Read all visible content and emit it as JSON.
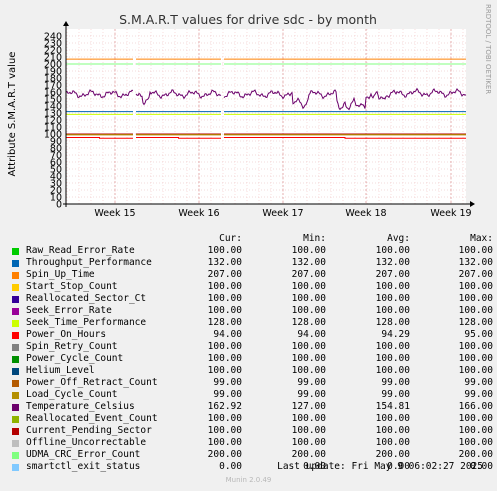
{
  "chart_data": {
    "type": "line",
    "title": "S.M.A.R.T values for drive sdc - by month",
    "ylabel": "Attribute S.M.A.R.T value",
    "side_label": "RRDTOOL / TOBI OETIKER",
    "ylim": [
      0,
      250
    ],
    "yticks": [
      0,
      10,
      20,
      30,
      40,
      50,
      60,
      70,
      80,
      90,
      100,
      110,
      120,
      130,
      140,
      150,
      160,
      170,
      180,
      190,
      200,
      210,
      220,
      230,
      240
    ],
    "xticks": [
      "Week 15",
      "Week 16",
      "Week 17",
      "Week 18",
      "Week 19"
    ],
    "columns": [
      "Cur:",
      "Min:",
      "Avg:",
      "Max:"
    ],
    "series": [
      {
        "name": "Raw_Read_Error_Rate",
        "color": "#00cc00",
        "cur": "100.00",
        "min": "100.00",
        "avg": "100.00",
        "max": "100.00"
      },
      {
        "name": "Throughput_Performance",
        "color": "#0066b3",
        "cur": "132.00",
        "min": "132.00",
        "avg": "132.00",
        "max": "132.00"
      },
      {
        "name": "Spin_Up_Time",
        "color": "#ff8000",
        "cur": "207.00",
        "min": "207.00",
        "avg": "207.00",
        "max": "207.00"
      },
      {
        "name": "Start_Stop_Count",
        "color": "#ffcc00",
        "cur": "100.00",
        "min": "100.00",
        "avg": "100.00",
        "max": "100.00"
      },
      {
        "name": "Reallocated_Sector_Ct",
        "color": "#330099",
        "cur": "100.00",
        "min": "100.00",
        "avg": "100.00",
        "max": "100.00"
      },
      {
        "name": "Seek_Error_Rate",
        "color": "#990099",
        "cur": "100.00",
        "min": "100.00",
        "avg": "100.00",
        "max": "100.00"
      },
      {
        "name": "Seek_Time_Performance",
        "color": "#ccff00",
        "cur": "128.00",
        "min": "128.00",
        "avg": "128.00",
        "max": "128.00"
      },
      {
        "name": "Power_On_Hours",
        "color": "#ff0000",
        "cur": "94.00",
        "min": "94.00",
        "avg": "94.29",
        "max": "95.00"
      },
      {
        "name": "Spin_Retry_Count",
        "color": "#808080",
        "cur": "100.00",
        "min": "100.00",
        "avg": "100.00",
        "max": "100.00"
      },
      {
        "name": "Power_Cycle_Count",
        "color": "#008f00",
        "cur": "100.00",
        "min": "100.00",
        "avg": "100.00",
        "max": "100.00"
      },
      {
        "name": "Helium_Level",
        "color": "#00487d",
        "cur": "100.00",
        "min": "100.00",
        "avg": "100.00",
        "max": "100.00"
      },
      {
        "name": "Power_Off_Retract_Count",
        "color": "#b35a00",
        "cur": "99.00",
        "min": "99.00",
        "avg": "99.00",
        "max": "99.00"
      },
      {
        "name": "Load_Cycle_Count",
        "color": "#b38f00",
        "cur": "99.00",
        "min": "99.00",
        "avg": "99.00",
        "max": "99.00"
      },
      {
        "name": "Temperature_Celsius",
        "color": "#6b006b",
        "cur": "162.92",
        "min": "127.00",
        "avg": "154.81",
        "max": "166.00"
      },
      {
        "name": "Reallocated_Event_Count",
        "color": "#8fb300",
        "cur": "100.00",
        "min": "100.00",
        "avg": "100.00",
        "max": "100.00"
      },
      {
        "name": "Current_Pending_Sector",
        "color": "#b30000",
        "cur": "100.00",
        "min": "100.00",
        "avg": "100.00",
        "max": "100.00"
      },
      {
        "name": "Offline_Uncorrectable",
        "color": "#bebebe",
        "cur": "100.00",
        "min": "100.00",
        "avg": "100.00",
        "max": "100.00"
      },
      {
        "name": "UDMA_CRC_Error_Count",
        "color": "#80ff80",
        "cur": "200.00",
        "min": "200.00",
        "avg": "200.00",
        "max": "200.00"
      },
      {
        "name": "smartctl_exit_status",
        "color": "#80c9ff",
        "cur": "0.00",
        "min": "0.00",
        "avg": "0.00",
        "max": "0.00"
      }
    ],
    "last_update": "Last update:  Fri May  9 06:02:27 2025",
    "version": "Munin 2.0.49"
  }
}
